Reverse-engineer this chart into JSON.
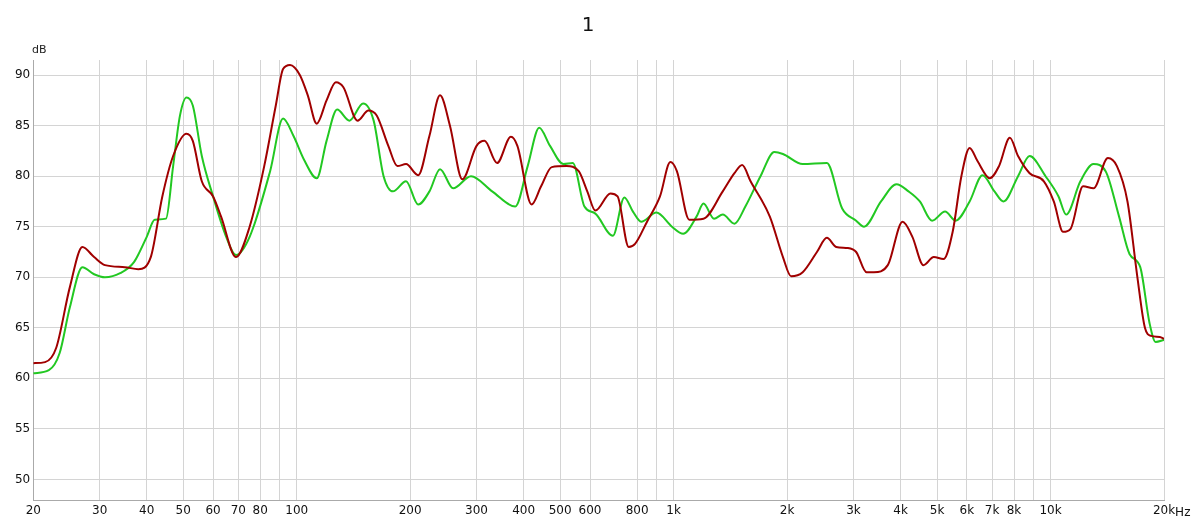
{
  "chart_data": {
    "type": "line",
    "title": "1",
    "ylabel": "dB",
    "log": "x",
    "grid": true,
    "legend": false,
    "marker": "none",
    "line_style": "solid",
    "xlim": [
      20,
      20000
    ],
    "ylim": [
      47.9,
      91.5
    ],
    "xticks": [
      20,
      30,
      40,
      50,
      60,
      70,
      80,
      {
        "value": 90,
        "label": null
      },
      100,
      200,
      300,
      400,
      500,
      600,
      800,
      {
        "value": 900,
        "label": null
      },
      {
        "value": 1000,
        "label": "1k"
      },
      {
        "value": 2000,
        "label": "2k"
      },
      {
        "value": 3000,
        "label": "3k"
      },
      {
        "value": 4000,
        "label": "4k"
      },
      {
        "value": 5000,
        "label": "5k"
      },
      {
        "value": 6000,
        "label": "6k"
      },
      {
        "value": 7000,
        "label": "7k"
      },
      {
        "value": 8000,
        "label": "8k"
      },
      {
        "value": 9000,
        "label": null
      },
      {
        "value": 10000,
        "label": "10k"
      },
      {
        "value": 20000,
        "label": "20k"
      }
    ],
    "xlabel": "Hz",
    "yticks": [
      50,
      55,
      60,
      65,
      70,
      75,
      80,
      85,
      90
    ],
    "series": [
      {
        "color": "#a00000",
        "x": [
          20,
          21.5,
          23,
          25,
          27,
          29,
          31,
          35,
          38,
          41,
          44,
          47,
          51,
          53,
          56,
          60,
          63,
          69,
          75,
          82,
          88,
          92,
          96,
          102,
          107,
          113,
          120,
          127,
          133,
          145,
          155,
          163,
          175,
          185,
          195,
          210,
          225,
          240,
          255,
          275,
          300,
          315,
          340,
          370,
          385,
          420,
          445,
          475,
          520,
          560,
          590,
          620,
          680,
          710,
          760,
          790,
          850,
          920,
          980,
          1020,
          1100,
          1200,
          1350,
          1450,
          1520,
          1600,
          1800,
          1950,
          2050,
          2200,
          2400,
          2550,
          2700,
          2900,
          3050,
          3250,
          3400,
          3700,
          4050,
          4300,
          4600,
          4900,
          5200,
          5500,
          5800,
          6100,
          6400,
          6900,
          7300,
          7800,
          8200,
          8800,
          9600,
          10200,
          10800,
          11300,
          12200,
          13000,
          14200,
          15000,
          16000,
          17000,
          17800,
          18500,
          19500,
          20000
        ],
        "values": [
          61.5,
          61.6,
          63,
          69,
          73,
          72,
          71.2,
          71,
          70.8,
          72,
          78,
          82,
          84.2,
          83.5,
          79.5,
          78,
          76,
          72,
          75,
          81,
          87,
          90.6,
          91,
          90,
          88,
          85.2,
          87.5,
          89.3,
          88.8,
          85.5,
          86.5,
          86,
          83,
          81,
          81.2,
          80.1,
          84,
          88,
          85,
          79.7,
          83,
          83.5,
          81.3,
          83.9,
          83,
          77.2,
          79,
          80.9,
          81,
          80.5,
          78.5,
          76.6,
          78.3,
          78,
          73,
          73.3,
          75.5,
          78,
          81.4,
          80.5,
          75.7,
          75.8,
          78.5,
          80.3,
          81.1,
          79.5,
          76,
          72,
          70.1,
          70.5,
          72.5,
          73.9,
          73,
          72.9,
          72.5,
          70.5,
          70.5,
          71.2,
          75.5,
          74,
          71.2,
          72,
          71.8,
          74.5,
          80,
          82.8,
          81.5,
          79.8,
          81,
          83.8,
          82,
          80.3,
          79.5,
          77.5,
          74.5,
          74.8,
          79,
          78.8,
          81.8,
          81,
          77.5,
          70,
          65,
          64.2,
          64.1,
          63.9
        ]
      },
      {
        "color": "#22c822",
        "x": [
          20,
          22,
          23.5,
          25,
          27,
          29,
          31,
          34,
          37,
          40,
          42,
          45,
          47,
          49,
          51,
          53,
          56,
          60,
          65,
          69,
          75,
          85,
          92,
          98,
          105,
          113,
          120,
          128,
          138,
          150,
          160,
          170,
          180,
          195,
          210,
          225,
          240,
          260,
          290,
          330,
          380,
          410,
          440,
          470,
          510,
          540,
          580,
          620,
          690,
          740,
          780,
          820,
          900,
          990,
          1060,
          1150,
          1200,
          1280,
          1350,
          1450,
          1550,
          1700,
          1850,
          1950,
          2200,
          2550,
          2800,
          3050,
          3200,
          3550,
          3900,
          4200,
          4500,
          4850,
          5250,
          5600,
          6100,
          6600,
          7100,
          7500,
          8200,
          8800,
          9700,
          10500,
          11000,
          12000,
          13000,
          14000,
          15200,
          16200,
          17300,
          18300,
          19000,
          20000
        ],
        "values": [
          60.5,
          60.8,
          62.5,
          67,
          71,
          70.3,
          70,
          70.4,
          71.5,
          74,
          75.7,
          75.8,
          81,
          86,
          87.8,
          87,
          82,
          78,
          74,
          72.2,
          74,
          80.5,
          85.7,
          84,
          81.5,
          79.8,
          83.5,
          86.6,
          85.5,
          87.2,
          85.5,
          80,
          78.5,
          79.5,
          77.2,
          78.5,
          80.7,
          78.8,
          80,
          78.5,
          77,
          81,
          84.8,
          83,
          81.2,
          81.3,
          77,
          76.3,
          74.1,
          77.9,
          76.5,
          75.5,
          76.4,
          75,
          74.3,
          76,
          77.3,
          75.8,
          76.2,
          75.3,
          77,
          80,
          82.4,
          82.2,
          81.2,
          81.3,
          76.8,
          75.6,
          75,
          77.5,
          79.2,
          78.5,
          77.5,
          75.6,
          76.5,
          75.6,
          77.5,
          80.1,
          78.5,
          77.5,
          80,
          82,
          80,
          78,
          76.2,
          79.5,
          81.2,
          80.5,
          76,
          72.3,
          71,
          65.5,
          63.6,
          63.8
        ]
      }
    ]
  }
}
